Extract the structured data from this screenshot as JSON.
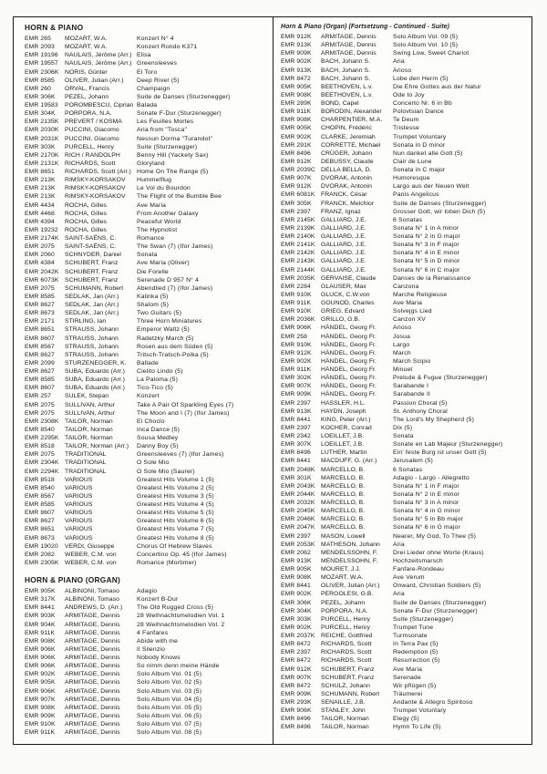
{
  "left": {
    "sections": [
      {
        "title": "HORN & PIANO",
        "items": [
          [
            "EMR 265",
            "MOZART, W.A.",
            "Konzert N° 4"
          ],
          [
            "EMR 2093",
            "MOZART, W.A.",
            "Konzert Rondo K371"
          ],
          [
            "EMR 19196",
            "NAULAIS, Jérôme (Arr.)",
            "Elisa"
          ],
          [
            "EMR 19557",
            "NAULAIS, Jérôme (Arr.)",
            "Greensleeves"
          ],
          [
            "EMR 2306K",
            "NORIS, Günter",
            "El Toro"
          ],
          [
            "EMR 8585",
            "OLIVER, Julian (Arr.)",
            "Deep River (5)"
          ],
          [
            "EMR 260",
            "ORVAL, Francis",
            "Champaign"
          ],
          [
            "EMR 306K",
            "PEZEL, Johann",
            "Suite de Danses (Sturzenegger)"
          ],
          [
            "EMR 19583",
            "POROMBESCU, Ciprian",
            "Balada"
          ],
          [
            "EMR 304K",
            "PORPORA, N.A.",
            "Sonate F-Dur (Sturzenegger)"
          ],
          [
            "EMR 2135K",
            "PREVERT / KOSMA",
            "Les Feuilles Mortes"
          ],
          [
            "EMR 2030K",
            "PUCCINI, Giacomo",
            "Aria from \"Tosca\""
          ],
          [
            "EMR 2031K",
            "PUCCINI, Giacomo",
            "Nessun Dorma \"Turandot\""
          ],
          [
            "EMR 303K",
            "PURCELL, Henry",
            "Suite (Sturzenegger)"
          ],
          [
            "EMR 2170K",
            "RICH / RANDOLPH",
            "Benny Hill (Yackety Sax)"
          ],
          [
            "EMR 2131K",
            "RICHARDS, Scott",
            "Gloryland"
          ],
          [
            "EMR 8651",
            "RICHARDS, Scott (Arr.)",
            "Home On The Range (5)"
          ],
          [
            "EMR 213K",
            "RIMSKY-KORSAKOV",
            "Hummelflug"
          ],
          [
            "EMR 213K",
            "RIMSKY-KORSAKOV",
            "Le Vol du Bourdon"
          ],
          [
            "EMR 213K",
            "RIMSKY-KORSAKOV",
            "The Flight of the Bumble Bee"
          ],
          [
            "EMR 4434",
            "ROCHA, Gilles",
            "Ave Maria"
          ],
          [
            "EMR 4468",
            "ROCHA, Gilles",
            "From Another Galaxy"
          ],
          [
            "EMR 4394",
            "ROCHA, Gilles",
            "Peaceful World"
          ],
          [
            "EMR 19232",
            "ROCHA, Gilles",
            "The Hypnotist"
          ],
          [
            "EMR 2174K",
            "SAINT-SAËNS, C.",
            "Romance"
          ],
          [
            "EMR 2075",
            "SAINT-SAËNS, C.",
            "The Swan (7) (Ifor James)"
          ],
          [
            "EMR 2060",
            "SCHNYDER, Daniel",
            "Sonata"
          ],
          [
            "EMR 4384",
            "SCHUBERT, Franz",
            "Ave Maria (Oliver)"
          ],
          [
            "EMR 2042K",
            "SCHUBERT, Franz",
            "Die Forelle"
          ],
          [
            "EMR 6073K",
            "SCHUBERT, Franz",
            "Serenade D 957 N° 4"
          ],
          [
            "EMR 2075",
            "SCHUMANN, Robert",
            "Abendlied (7) (Ifor James)"
          ],
          [
            "EMR 8585",
            "SEDLAK, Jan (Arr.)",
            "Kalinka (5)"
          ],
          [
            "EMR 8627",
            "SEDLAK, Jan (Arr.)",
            "Shalom (5)"
          ],
          [
            "EMR 8673",
            "SEDLAK, Jan (Arr.)",
            "Two Guitars (5)"
          ],
          [
            "EMR 2171",
            "STIRLING, Ian",
            "Three Horn Miniatures"
          ],
          [
            "EMR 8651",
            "STRAUSS, Johann",
            "Emperor Waltz (5)"
          ],
          [
            "EMR 8607",
            "STRAUSS, Johann",
            "Radetzky March (5)"
          ],
          [
            "EMR 8567",
            "STRAUSS, Johann",
            "Rosen aus dem Süden (5)"
          ],
          [
            "EMR 8627",
            "STRAUSS, Johann",
            "Tritsch-Tratsch-Polka (5)"
          ],
          [
            "EMR 2099",
            "STURZENEGGER, K.",
            "Ballade"
          ],
          [
            "EMR 8627",
            "SUBA, Eduardo (Arr.)",
            "Cielito Lindo (5)"
          ],
          [
            "EMR 8585",
            "SUBA, Eduardo (Arr.)",
            "La Paloma (5)"
          ],
          [
            "EMR 8607",
            "SUBA, Eduardo (Arr.)",
            "Tico-Tico (5)"
          ],
          [
            "EMR 257",
            "SULEK, Stepan",
            "Konzert"
          ],
          [
            "EMR 2075",
            "SULLIVAN, Arthur",
            "Take A Pair Of Sparkling Eyes (7)"
          ],
          [
            "EMR 2075",
            "SULLIVAN, Arthur",
            "The Moon and I (7) (Ifor James)"
          ],
          [
            "EMR 2308K",
            "TAILOR, Norman",
            "El Choclo"
          ],
          [
            "EMR 8540",
            "TAILOR, Norman",
            "Inca Dance (5)"
          ],
          [
            "EMR 2295K",
            "TAILOR, Norman",
            "Sousa Medley"
          ],
          [
            "EMR 8518",
            "TAILOR, Norman (Arr.)",
            "Danny Boy (5)"
          ],
          [
            "EMR 2075",
            "TRADITIONAL",
            "Greensleeves (7) (Ifor James)"
          ],
          [
            "EMR 2304K",
            "TRADITIONAL",
            "O Sole Mio"
          ],
          [
            "EMR 2294K",
            "TRADITIONAL",
            "O Sole Mio (Saurer)"
          ],
          [
            "EMR 8518",
            "VARIOUS",
            "Greatest Hits Volume 1 (5)"
          ],
          [
            "EMR 8540",
            "VARIOUS",
            "Greatest Hits Volume 2 (5)"
          ],
          [
            "EMR 8567",
            "VARIOUS",
            "Greatest Hits Volume 3 (5)"
          ],
          [
            "EMR 8585",
            "VARIOUS",
            "Greatest Hits Volume 4 (5)"
          ],
          [
            "EMR 8607",
            "VARIOUS",
            "Greatest Hits Volume 5 (5)"
          ],
          [
            "EMR 8627",
            "VARIOUS",
            "Greatest Hits Volume 6 (5)"
          ],
          [
            "EMR 8651",
            "VARIOUS",
            "Greatest Hits Volume 7 (5)"
          ],
          [
            "EMR 8673",
            "VARIOUS",
            "Greatest Hits Volume 8 (5)"
          ],
          [
            "EMR 19020",
            "VERDI, Giuseppe",
            "Chorus Of Hebrew Slaves"
          ],
          [
            "EMR 2082",
            "WEBER, C.M. von",
            "Concertino Op. 45 (Ifor James)"
          ],
          [
            "EMR 2305K",
            "WEBER, C.M. von",
            "Romance (Mortimer)"
          ]
        ]
      },
      {
        "title": "HORN & PIANO (ORGAN)",
        "items": [
          [
            "EMR 905K",
            "ALBINONI, Tomaso",
            "Adagio"
          ],
          [
            "EMR 317K",
            "ALBINONI, Tomaso",
            "Konzert B-Dur"
          ],
          [
            "EMR 8441",
            "ANDREWS, D. (Arr.)",
            "The Old Rugged Cross (5)"
          ],
          [
            "EMR 903K",
            "ARMITAGE, Dennis",
            "28 Weihnachtsmelodien Vol. 1"
          ],
          [
            "EMR 904K",
            "ARMITAGE, Dennis",
            "28 Weihnachtsmelodien Vol. 2"
          ],
          [
            "EMR 911K",
            "ARMITAGE, Dennis",
            "4 Fanfares"
          ],
          [
            "EMR 908K",
            "ARMITAGE, Dennis",
            "Abide with me"
          ],
          [
            "EMR 906K",
            "ARMITAGE, Dennis",
            "Il Silenzio"
          ],
          [
            "EMR 906K",
            "ARMITAGE, Dennis",
            "Nobody Knows"
          ],
          [
            "EMR 906K",
            "ARMITAGE, Dennis",
            "So nimm denn meine Hände"
          ],
          [
            "EMR 902K",
            "ARMITAGE, Dennis",
            "Solo Album Vol. 01 (5)"
          ],
          [
            "EMR 905K",
            "ARMITAGE, Dennis",
            "Solo Album Vol. 02 (5)"
          ],
          [
            "EMR 906K",
            "ARMITAGE, Dennis",
            "Solo Album Vol. 03 (5)"
          ],
          [
            "EMR 907K",
            "ARMITAGE, Dennis",
            "Solo Album Vol. 04 (5)"
          ],
          [
            "EMR 908K",
            "ARMITAGE, Dennis",
            "Solo Album Vol. 05 (5)"
          ],
          [
            "EMR 909K",
            "ARMITAGE, Dennis",
            "Solo Album Vol. 06 (5)"
          ],
          [
            "EMR 910K",
            "ARMITAGE, Dennis",
            "Solo Album Vol. 07 (5)"
          ],
          [
            "EMR 911K",
            "ARMITAGE, Dennis",
            "Solo Album Vol. 08 (5)"
          ]
        ]
      }
    ]
  },
  "right": {
    "continuation_header": "Horn & Piano (Organ) (Fortsetzung - Continued - Suite)",
    "items": [
      [
        "EMR 912K",
        "ARMITAGE, Dennis",
        "Solo Album Vol. 09 (5)"
      ],
      [
        "EMR 913K",
        "ARMITAGE, Dennis",
        "Solo Album Vol. 10 (5)"
      ],
      [
        "EMR 909K",
        "ARMITAGE, Dennis",
        "Swing Low, Sweet Chariot"
      ],
      [
        "EMR 902K",
        "BACH, Johann S.",
        "Aria"
      ],
      [
        "EMR 913K",
        "BACH, Johann S.",
        "Arioso"
      ],
      [
        "EMR 8472",
        "BACH, Johann S.",
        "Lobe den Herrn (5)"
      ],
      [
        "EMR 905K",
        "BEETHOVEN, L.v.",
        "Die Ehre Gottes aus der Natur"
      ],
      [
        "EMR 908K",
        "BEETHOVEN, L.v.",
        "Ode to Joy"
      ],
      [
        "EMR 289K",
        "BOND, Capel",
        "Concerto Nr. 6 in Bb"
      ],
      [
        "EMR 911K",
        "BORODIN, Alexander",
        "Polovtsian Dance"
      ],
      [
        "EMR 908K",
        "CHARPENTIER, M.A.",
        "Te Deum"
      ],
      [
        "EMR 905K",
        "CHOPIN, Frédéric",
        "Tristesse"
      ],
      [
        "EMR 902K",
        "CLARKE, Jeremiah",
        "Trumpet Voluntary"
      ],
      [
        "EMR 291K",
        "CORRETTE, Michael",
        "Sonata in D minor"
      ],
      [
        "EMR 8496",
        "CRÜGER, Johann",
        "Nun danket alle Gott (5)"
      ],
      [
        "EMR 912K",
        "DEBUSSY, Claude",
        "Clair de Lune"
      ],
      [
        "EMR 2039C",
        "DELLA BELLA, D.",
        "Sonata in C major"
      ],
      [
        "EMR 907K",
        "DVORAK, Antonin",
        "Humoresque"
      ],
      [
        "EMR 912K",
        "DVORAK, Antonin",
        "Largo aus der Neuen Welt"
      ],
      [
        "EMR 6081K",
        "FRANCK, César",
        "Panis Angelicus"
      ],
      [
        "EMR 305K",
        "FRANCK, Melchior",
        "Suite de Danses (Sturzenegger)"
      ],
      [
        "EMR 2397",
        "FRANZ, Ignaz",
        "Grosser Gott, wir loben Dich (5)"
      ],
      [
        "EMR 2145K",
        "GALLIARD, J.E.",
        "6 Sonatas"
      ],
      [
        "EMR 2139K",
        "GALLIARD, J.E.",
        "Sonata N° 1 in A minor"
      ],
      [
        "EMR 2140K",
        "GALLIARD, J.E.",
        "Sonata N° 2 in G major"
      ],
      [
        "EMR 2141K",
        "GALLIARD, J.E.",
        "Sonata N° 3 in F major"
      ],
      [
        "EMR 2142K",
        "GALLIARD, J.E.",
        "Sonata N° 4 in E minor"
      ],
      [
        "EMR 2143K",
        "GALLIARD, J.E.",
        "Sonata N° 5 in D minor"
      ],
      [
        "EMR 2144K",
        "GALLIARD, J.E.",
        "Sonata N° 6 in C major"
      ],
      [
        "EMR 2035K",
        "GERVAISE, Claude",
        "Danses de la Renaissance"
      ],
      [
        "EMR 2284",
        "GLAUSER, Max",
        "Canzona"
      ],
      [
        "EMR 910K",
        "GLUCK, C.W.von",
        "Marche Religieuse"
      ],
      [
        "EMR 911K",
        "GOUNOD, Charles",
        "Ave Maria"
      ],
      [
        "EMR 910K",
        "GRIEG, Edvard",
        "Solvejgs Lied"
      ],
      [
        "EMR 2036K",
        "GRILLO, G.B.",
        "Canzon XV"
      ],
      [
        "EMR 906K",
        "HÄNDEL, Georg Fr.",
        "Arioso"
      ],
      [
        "EMR 258",
        "HÄNDEL, Georg Fr.",
        "Josua"
      ],
      [
        "EMR 910K",
        "HÄNDEL, Georg Fr.",
        "Largo"
      ],
      [
        "EMR 912K",
        "HÄNDEL, Georg Fr.",
        "March"
      ],
      [
        "EMR 902K",
        "HÄNDEL, Georg Fr.",
        "March Scipio"
      ],
      [
        "EMR 911K",
        "HÄNDEL, Georg Fr.",
        "Minuet"
      ],
      [
        "EMR 302K",
        "HÄNDEL, Georg Fr.",
        "Prelude & Fugue (Sturzenegger)"
      ],
      [
        "EMR 907K",
        "HÄNDEL, Georg Fr.",
        "Sarabande I"
      ],
      [
        "EMR 909K",
        "HÄNDEL, Georg Fr.",
        "Sarabande II"
      ],
      [
        "EMR 2397",
        "HASSLER, H.L.",
        "Passion Choral (5)"
      ],
      [
        "EMR 913K",
        "HAYDN, Joseph",
        "St. Anthony Choral"
      ],
      [
        "EMR 8441",
        "KING, Peter (Arr.)",
        "The Lord's My Shepherd (5)"
      ],
      [
        "EMR 2397",
        "KOCHER, Conrad",
        "Dix (5)"
      ],
      [
        "EMR 2342",
        "LOEILLET, J.B.",
        "Sonata"
      ],
      [
        "EMR 307K",
        "LOEILLET, J.B.",
        "Sonate en Lab Majeur (Sturzenegger)"
      ],
      [
        "EMR 8496",
        "LUTHER, Martin",
        "Ein' feste Burg ist unser Gott (5)"
      ],
      [
        "EMR 8441",
        "MACDUFF, G. (Arr.)",
        "Jerusalem (5)"
      ],
      [
        "EMR 2048K",
        "MARCELLO, B.",
        "6 Sonatas"
      ],
      [
        "EMR 301K",
        "MARCELLO, B.",
        "Adagio - Largo - Allegretto"
      ],
      [
        "EMR 2043K",
        "MARCELLO, B.",
        "Sonata N° 1 in F major"
      ],
      [
        "EMR 2044K",
        "MARCELLO, B.",
        "Sonata N° 2 in E minor"
      ],
      [
        "EMR 2032K",
        "MARCELLO, B.",
        "Sonata N° 3 in A minor"
      ],
      [
        "EMR 2045K",
        "MARCELLO, B.",
        "Sonata N° 4 in G minor"
      ],
      [
        "EMR 2046K",
        "MARCELLO, B.",
        "Sonata N° 5 in Bb major"
      ],
      [
        "EMR 2047K",
        "MARCELLO, B.",
        "Sonata N° 6 in G major"
      ],
      [
        "EMR 2397",
        "MASON, Lowell",
        "Nearer, My God, To Thee (5)"
      ],
      [
        "EMR 2053K",
        "MATHESON, Johann",
        "Aria"
      ],
      [
        "EMR 2062",
        "MENDELSSOHN, F.",
        "Drei Lieder ohne Worte (Kraus)"
      ],
      [
        "EMR 913K",
        "MENDELSSOHN, F.",
        "Hochzeitsmarsch"
      ],
      [
        "EMR 905K",
        "MOURET, J.J.",
        "Fanfare-Rondeau"
      ],
      [
        "EMR 908K",
        "MOZART, W.A.",
        "Ave Verum"
      ],
      [
        "EMR 8441",
        "OLIVER, Julian (Arr.)",
        "Onward, Christian Soldiers (5)"
      ],
      [
        "EMR 902K",
        "PERGOLESI, G.B.",
        "Aria"
      ],
      [
        "EMR 306K",
        "PEZEL, Johann",
        "Suite de Danses (Sturzenegger)"
      ],
      [
        "EMR 304K",
        "PORPORA, N.A.",
        "Sonate F-Dur (Sturzenegger)"
      ],
      [
        "EMR 303K",
        "PURCELL, Henry",
        "Suite (Sturzenegger)"
      ],
      [
        "EMR 902K",
        "PURCELL, Henry",
        "Trumpet Tune"
      ],
      [
        "EMR 2037K",
        "REICHE, Gottfried",
        "Turmsonate"
      ],
      [
        "EMR 8472",
        "RICHARDS, Scott",
        "In Terra Pax (5)"
      ],
      [
        "EMR 2397",
        "RICHARDS, Scott",
        "Redemption (5)"
      ],
      [
        "EMR 8472",
        "RICHARDS, Scott",
        "Resurrection (5)"
      ],
      [
        "EMR 912K",
        "SCHUBERT, Franz",
        "Ave Maria"
      ],
      [
        "EMR 907K",
        "SCHUBERT, Franz",
        "Serenade"
      ],
      [
        "EMR 8472",
        "SCHULZ, Johann",
        "Wir pflügen (5)"
      ],
      [
        "EMR 909K",
        "SCHUMANN, Robert",
        "Träumerei"
      ],
      [
        "EMR 293K",
        "SENAILLE, J.B.",
        "Andante & Allegro Spiritoso"
      ],
      [
        "EMR 906K",
        "STANLEY, John",
        "Trumpet Voluntary"
      ],
      [
        "EMR 8496",
        "TAILOR, Norman",
        "Elegy (5)"
      ],
      [
        "EMR 8496",
        "TAILOR, Norman",
        "Hymn To Life (5)"
      ]
    ]
  }
}
